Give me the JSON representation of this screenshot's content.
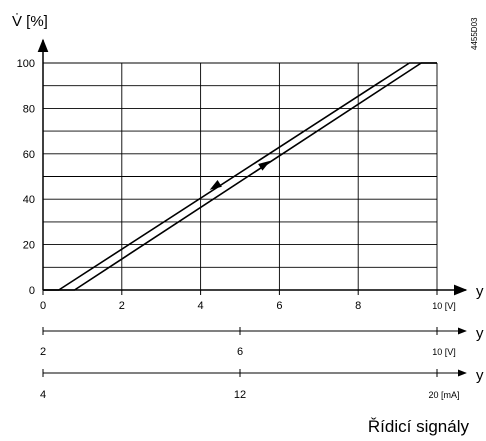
{
  "chart_data": {
    "type": "line",
    "ylabel": "V̇ [%]",
    "ylim": [
      0,
      100
    ],
    "yticks": [
      0,
      20,
      40,
      60,
      80,
      100
    ],
    "grid": true,
    "code": "4455D03",
    "caption": "Řídicí signály",
    "x_axes": [
      {
        "label": "y",
        "unit": "10 [V]",
        "range": [
          0,
          10
        ],
        "ticks": [
          "0",
          "2",
          "4",
          "6",
          "8"
        ]
      },
      {
        "label": "y",
        "unit": "10 [V]",
        "range": [
          2,
          10
        ],
        "ticks": [
          "2",
          "6"
        ]
      },
      {
        "label": "y",
        "unit": "20 [mA]",
        "range": [
          4,
          20
        ],
        "ticks": [
          "4",
          "12"
        ]
      }
    ],
    "series": [
      {
        "x": [
          0,
          0.4,
          9.3,
          10
        ],
        "y": [
          0,
          0,
          100,
          100
        ]
      },
      {
        "x": [
          0,
          0.8,
          9.6,
          10
        ],
        "y": [
          0,
          0,
          100,
          100
        ]
      }
    ],
    "arrows": [
      {
        "direction": "up",
        "x": 5.6,
        "y": 55
      },
      {
        "direction": "down",
        "x": 4.4,
        "y": 46
      }
    ]
  }
}
